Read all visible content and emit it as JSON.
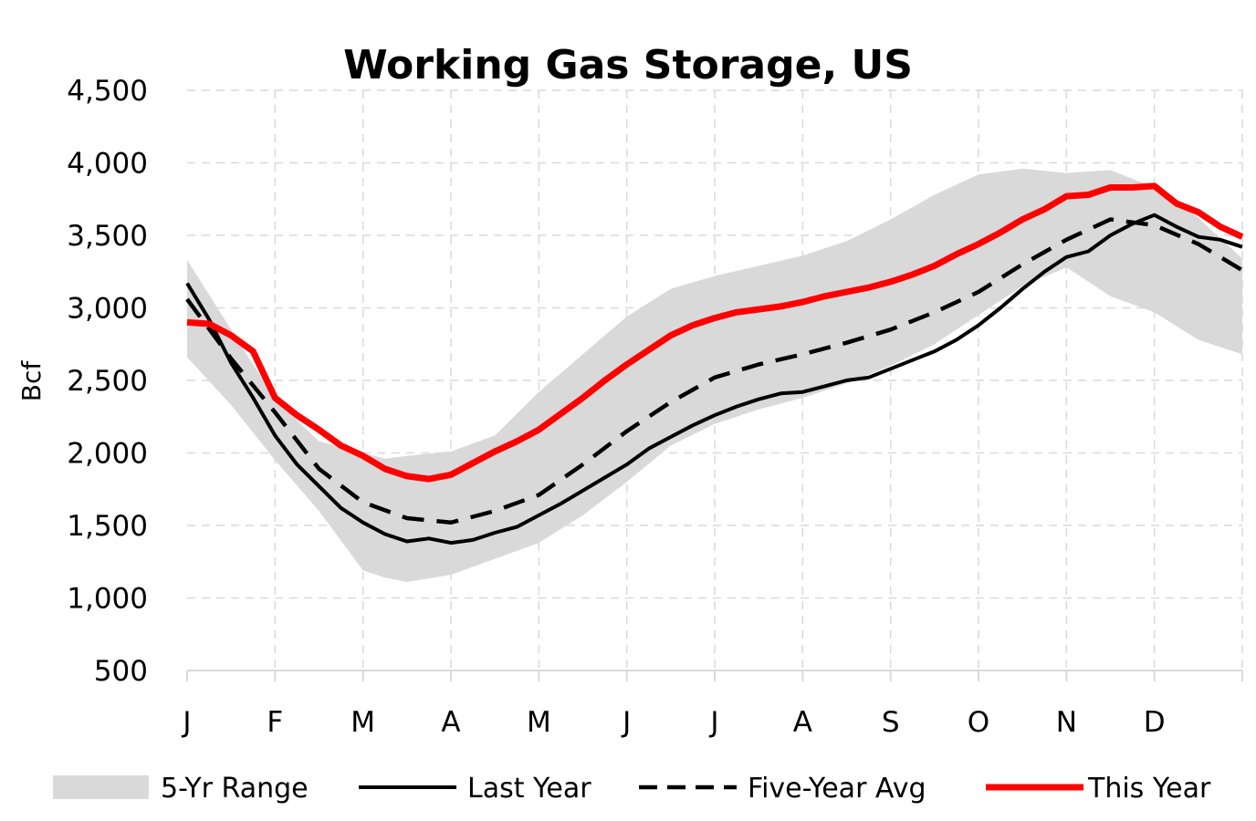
{
  "chart_data": {
    "type": "line",
    "title": "Working Gas Storage, US",
    "ylabel": "Bcf",
    "xlabel": "",
    "ylim": [
      500,
      4500
    ],
    "yticks": [
      500,
      1000,
      1500,
      2000,
      2500,
      3000,
      3500,
      4000,
      4500
    ],
    "ytick_labels": [
      "500",
      "1,000",
      "1,500",
      "2,000",
      "2,500",
      "3,000",
      "3,500",
      "4,000",
      "4,500"
    ],
    "x_range": [
      0,
      12
    ],
    "categories": [
      "J",
      "F",
      "M",
      "A",
      "M",
      "J",
      "J",
      "A",
      "S",
      "O",
      "N",
      "D"
    ],
    "grid": true,
    "legend_placement": "bottom",
    "legend": [
      {
        "label": "5-Yr Range",
        "style": "band",
        "color": "#d9d9d9"
      },
      {
        "label": "Last Year",
        "style": "solid",
        "color": "#000000"
      },
      {
        "label": "Five-Year Avg",
        "style": "dashed",
        "color": "#000000"
      },
      {
        "label": "This Year",
        "style": "thick",
        "color": "#ff0000"
      }
    ],
    "range_band": {
      "name": "5-Yr Range",
      "color": "#d9d9d9",
      "x": [
        0,
        0.5,
        1,
        1.5,
        2,
        2.25,
        2.5,
        3,
        3.5,
        4,
        4.5,
        5,
        5.5,
        6,
        6.5,
        7,
        7.5,
        8,
        8.5,
        9,
        9.5,
        10,
        10.5,
        11,
        11.5,
        12
      ],
      "upper": [
        3330,
        2850,
        2370,
        2080,
        2000,
        1960,
        1980,
        2010,
        2120,
        2420,
        2680,
        2940,
        3130,
        3220,
        3290,
        3360,
        3460,
        3610,
        3780,
        3920,
        3960,
        3930,
        3950,
        3830,
        3620,
        3340
      ],
      "lower": [
        2660,
        2330,
        1950,
        1600,
        1190,
        1140,
        1110,
        1160,
        1270,
        1380,
        1570,
        1800,
        2050,
        2200,
        2300,
        2380,
        2480,
        2600,
        2750,
        2950,
        3150,
        3280,
        3080,
        2970,
        2780,
        2680
      ]
    },
    "series": [
      {
        "name": "Last Year",
        "color": "#000000",
        "style": "solid",
        "x": [
          0,
          0.25,
          0.5,
          0.75,
          1,
          1.25,
          1.5,
          1.75,
          2,
          2.25,
          2.5,
          2.75,
          3,
          3.25,
          3.5,
          3.75,
          4,
          4.25,
          4.5,
          4.75,
          5,
          5.25,
          5.5,
          5.75,
          6,
          6.25,
          6.5,
          6.75,
          7,
          7.25,
          7.5,
          7.75,
          8,
          8.25,
          8.5,
          8.75,
          9,
          9.25,
          9.5,
          9.75,
          10,
          10.25,
          10.5,
          10.75,
          11,
          11.25,
          11.5,
          11.75,
          12
        ],
        "values": [
          3170,
          2920,
          2620,
          2380,
          2120,
          1920,
          1770,
          1620,
          1520,
          1440,
          1390,
          1410,
          1380,
          1400,
          1450,
          1490,
          1570,
          1650,
          1740,
          1830,
          1920,
          2030,
          2110,
          2190,
          2260,
          2320,
          2370,
          2410,
          2420,
          2460,
          2500,
          2520,
          2580,
          2640,
          2700,
          2780,
          2880,
          3000,
          3130,
          3250,
          3350,
          3390,
          3500,
          3580,
          3640,
          3560,
          3490,
          3470,
          3420
        ]
      },
      {
        "name": "Five-Year Avg",
        "color": "#000000",
        "style": "dashed",
        "x": [
          0,
          0.5,
          1,
          1.5,
          2,
          2.5,
          3,
          3.5,
          4,
          4.5,
          5,
          5.5,
          6,
          6.5,
          7,
          7.5,
          8,
          8.5,
          9,
          9.5,
          10,
          10.5,
          11,
          11.5,
          12
        ],
        "values": [
          3060,
          2650,
          2280,
          1890,
          1660,
          1550,
          1520,
          1600,
          1710,
          1920,
          2150,
          2350,
          2520,
          2610,
          2680,
          2760,
          2850,
          2970,
          3110,
          3300,
          3470,
          3610,
          3570,
          3440,
          3260
        ]
      },
      {
        "name": "This Year",
        "color": "#ff0000",
        "style": "thick",
        "x": [
          0,
          0.25,
          0.5,
          0.75,
          1,
          1.25,
          1.5,
          1.75,
          2,
          2.25,
          2.5,
          2.75,
          3,
          3.25,
          3.5,
          3.75,
          4,
          4.25,
          4.5,
          4.75,
          5,
          5.25,
          5.5,
          5.75,
          6,
          6.25,
          6.5,
          6.75,
          7,
          7.25,
          7.5,
          7.75,
          8,
          8.25,
          8.5,
          8.75,
          9,
          9.25,
          9.5,
          9.75,
          10,
          10.25,
          10.5,
          10.75,
          11,
          11.25,
          11.5,
          11.75,
          12
        ],
        "values": [
          2900,
          2890,
          2810,
          2700,
          2380,
          2260,
          2160,
          2050,
          1980,
          1890,
          1840,
          1820,
          1850,
          1930,
          2010,
          2080,
          2160,
          2270,
          2380,
          2500,
          2610,
          2710,
          2810,
          2880,
          2930,
          2970,
          2990,
          3010,
          3040,
          3080,
          3110,
          3140,
          3180,
          3230,
          3290,
          3370,
          3440,
          3520,
          3610,
          3680,
          3770,
          3780,
          3830,
          3830,
          3840,
          3720,
          3660,
          3560,
          3490
        ]
      }
    ]
  }
}
